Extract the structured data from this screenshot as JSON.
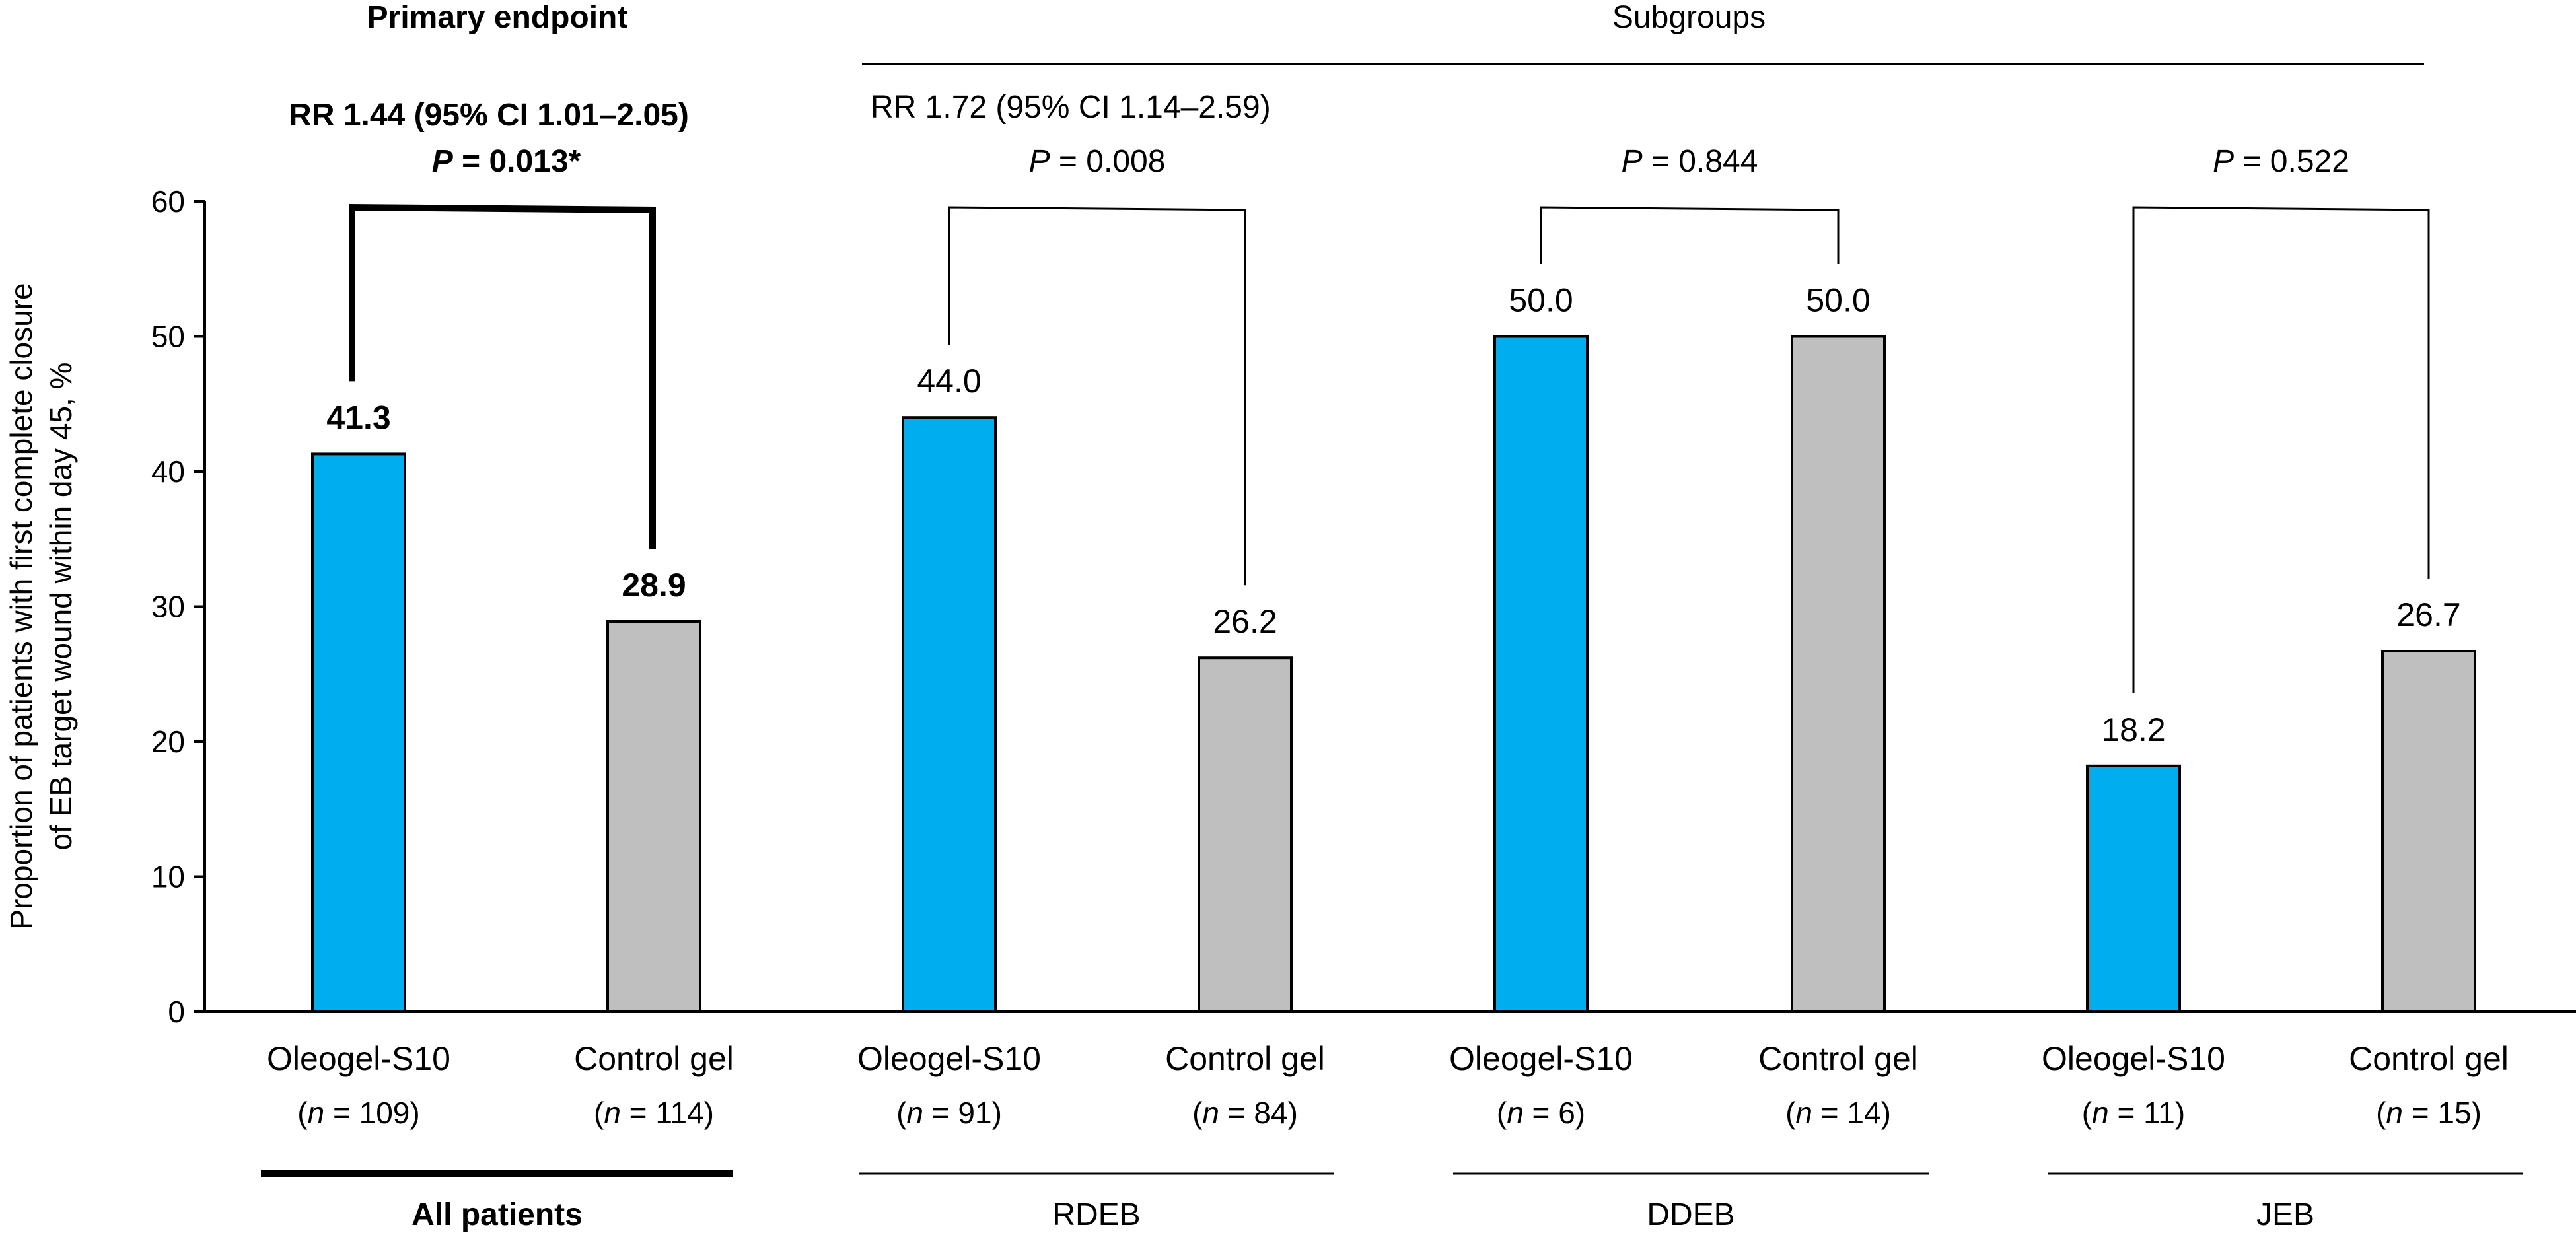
{
  "chart_data": {
    "type": "bar",
    "ylabel_lines": [
      "Proportion of patients with first complete closure",
      "of EB target wound within day 45, %"
    ],
    "ylim": [
      0,
      60
    ],
    "yticks": [
      0,
      10,
      20,
      30,
      40,
      50,
      60
    ],
    "colors": {
      "oleogel": "#00AEEF",
      "control": "#BFBFBF"
    },
    "headers": {
      "primary": "Primary endpoint",
      "subgroups": "Subgroups"
    },
    "groups": [
      {
        "name": "All patients",
        "emphasis": true,
        "rr": "RR 1.44 (95% CI 1.01–2.05)",
        "p_value": "= 0.013*",
        "bars": [
          {
            "label": "Oleogel-S10",
            "n_value": "= 109",
            "value": 41.3,
            "value_label": "41.3",
            "color_key": "oleogel"
          },
          {
            "label": "Control gel",
            "n_value": "= 114",
            "value": 28.9,
            "value_label": "28.9",
            "color_key": "control"
          }
        ]
      },
      {
        "name": "RDEB",
        "emphasis": false,
        "rr": "RR 1.72 (95% CI 1.14–2.59)",
        "p_value": "= 0.008",
        "bars": [
          {
            "label": "Oleogel-S10",
            "n_value": "= 91",
            "value": 44.0,
            "value_label": "44.0",
            "color_key": "oleogel"
          },
          {
            "label": "Control gel",
            "n_value": "= 84",
            "value": 26.2,
            "value_label": "26.2",
            "color_key": "control"
          }
        ]
      },
      {
        "name": "DDEB",
        "emphasis": false,
        "p_value": "= 0.844",
        "bars": [
          {
            "label": "Oleogel-S10",
            "n_value": "= 6",
            "value": 50.0,
            "value_label": "50.0",
            "color_key": "oleogel"
          },
          {
            "label": "Control gel",
            "n_value": "= 14",
            "value": 50.0,
            "value_label": "50.0",
            "color_key": "control"
          }
        ]
      },
      {
        "name": "JEB",
        "emphasis": false,
        "p_value": "= 0.522",
        "bars": [
          {
            "label": "Oleogel-S10",
            "n_value": "= 11",
            "value": 18.2,
            "value_label": "18.2",
            "color_key": "oleogel"
          },
          {
            "label": "Control gel",
            "n_value": "= 15",
            "value": 26.7,
            "value_label": "26.7",
            "color_key": "control"
          }
        ]
      }
    ]
  }
}
